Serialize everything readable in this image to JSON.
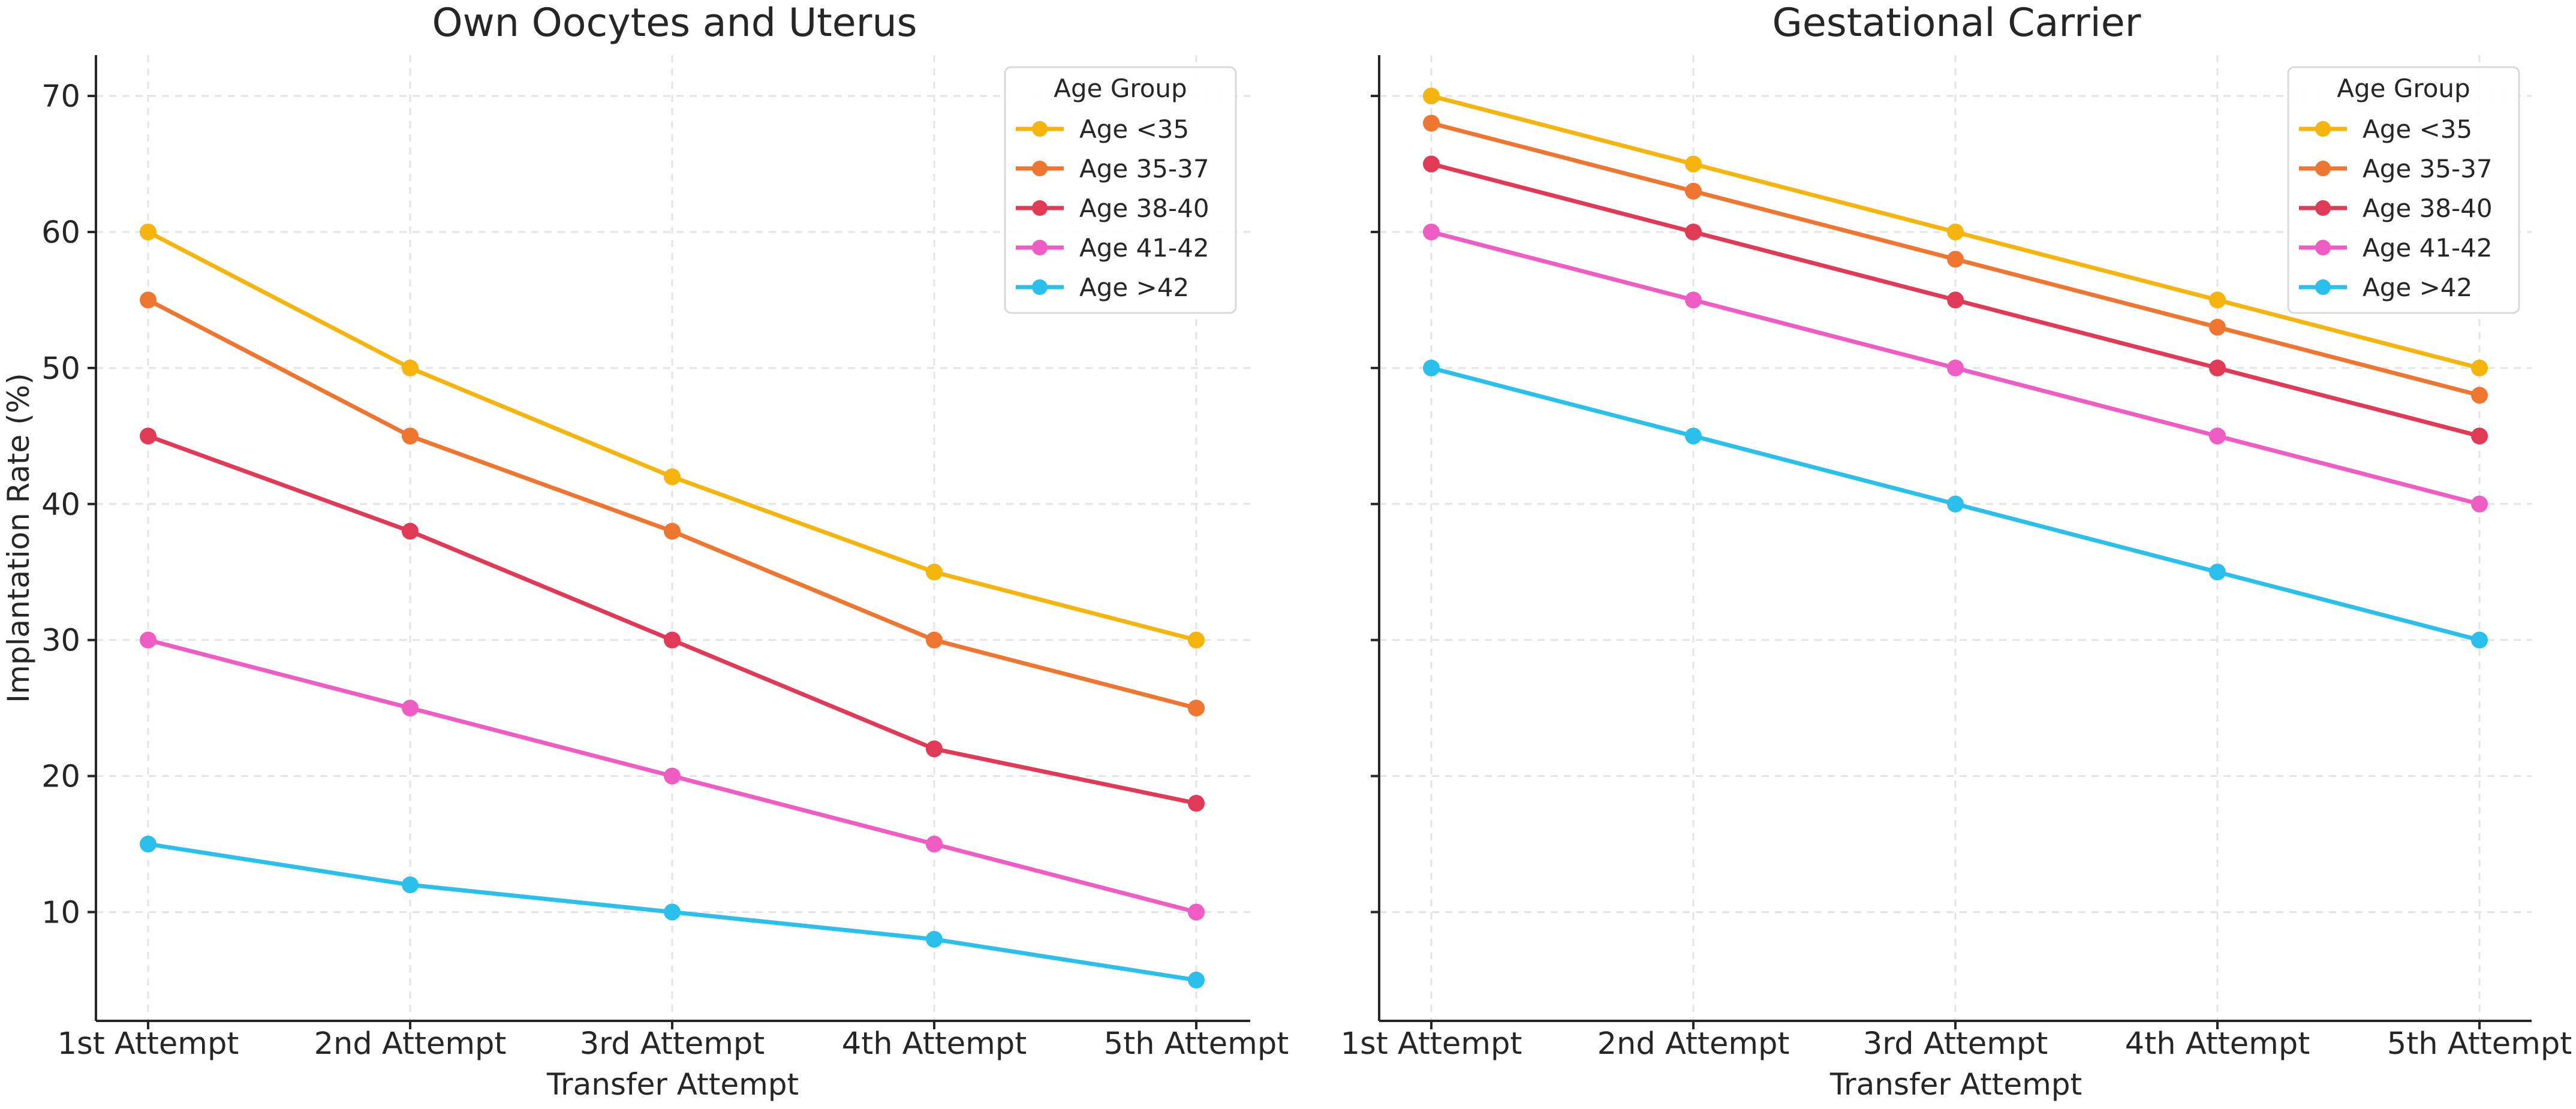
{
  "chart_data": [
    {
      "type": "line",
      "title": "Own Oocytes and Uterus",
      "xlabel": "Transfer Attempt",
      "ylabel": "Implantation Rate (%)",
      "categories": [
        "1st Attempt",
        "2nd Attempt",
        "3rd Attempt",
        "4th Attempt",
        "5th Attempt"
      ],
      "ylim": [
        2,
        73
      ],
      "yticks": [
        10,
        20,
        30,
        40,
        50,
        60,
        70
      ],
      "grid": true,
      "legend": {
        "title": "Age Group",
        "position": "top-right"
      },
      "series": [
        {
          "name": "Age <35",
          "color": "#F5B40E",
          "values": [
            60,
            50,
            42,
            35,
            30
          ]
        },
        {
          "name": "Age 35-37",
          "color": "#EE7630",
          "values": [
            55,
            45,
            38,
            30,
            25
          ]
        },
        {
          "name": "Age 38-40",
          "color": "#E13A57",
          "values": [
            45,
            38,
            30,
            22,
            18
          ]
        },
        {
          "name": "Age 41-42",
          "color": "#EE5CC4",
          "values": [
            30,
            25,
            20,
            15,
            10
          ]
        },
        {
          "name": "Age >42",
          "color": "#2BC0EC",
          "values": [
            15,
            12,
            10,
            8,
            5
          ]
        }
      ]
    },
    {
      "type": "line",
      "title": "Gestational Carrier",
      "xlabel": "Transfer Attempt",
      "ylabel": "",
      "categories": [
        "1st Attempt",
        "2nd Attempt",
        "3rd Attempt",
        "4th Attempt",
        "5th Attempt"
      ],
      "ylim": [
        2,
        73
      ],
      "yticks": [
        10,
        20,
        30,
        40,
        50,
        60,
        70
      ],
      "grid": true,
      "legend": {
        "title": "Age Group",
        "position": "top-right"
      },
      "series": [
        {
          "name": "Age <35",
          "color": "#F5B40E",
          "values": [
            70,
            65,
            60,
            55,
            50
          ]
        },
        {
          "name": "Age 35-37",
          "color": "#EE7630",
          "values": [
            68,
            63,
            58,
            53,
            48
          ]
        },
        {
          "name": "Age 38-40",
          "color": "#E13A57",
          "values": [
            65,
            60,
            55,
            50,
            45
          ]
        },
        {
          "name": "Age 41-42",
          "color": "#EE5CC4",
          "values": [
            60,
            55,
            50,
            45,
            40
          ]
        },
        {
          "name": "Age >42",
          "color": "#2BC0EC",
          "values": [
            50,
            45,
            40,
            35,
            30
          ]
        }
      ]
    }
  ]
}
